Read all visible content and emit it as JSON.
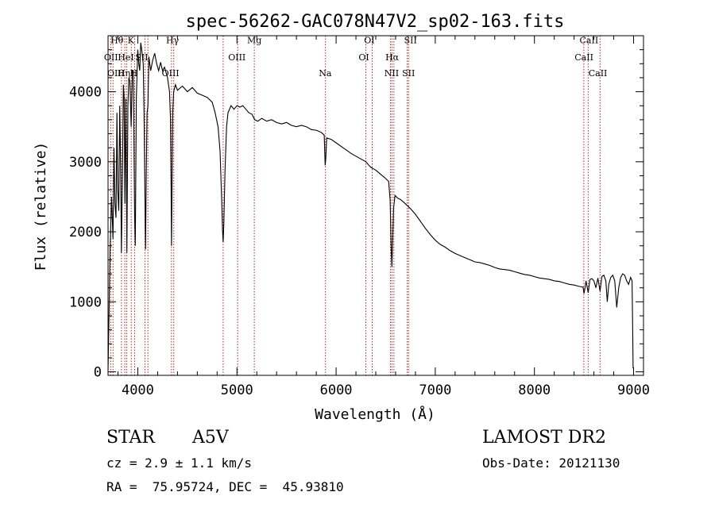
{
  "chart_data": {
    "type": "line",
    "title": "spec-56262-GAC078N47V2_sp02-163.fits",
    "xlabel": "Wavelength (Å)",
    "ylabel": "Flux (relative)",
    "xlim": [
      3700,
      9100
    ],
    "ylim": [
      -50,
      4800
    ],
    "xticks": [
      4000,
      5000,
      6000,
      7000,
      8000,
      9000
    ],
    "xtick_labels": [
      "4000",
      "5000",
      "6000",
      "7000",
      "8000",
      "9000"
    ],
    "yticks": [
      0,
      1000,
      2000,
      3000,
      4000
    ],
    "ytick_labels": [
      "0",
      "1000",
      "2000",
      "3000",
      "4000"
    ],
    "grid": false,
    "series": [
      {
        "name": "",
        "points": [
          [
            3700,
            30
          ],
          [
            3705,
            400
          ],
          [
            3720,
            1700
          ],
          [
            3735,
            2500
          ],
          [
            3750,
            1900
          ],
          [
            3760,
            3200
          ],
          [
            3770,
            2400
          ],
          [
            3780,
            2200
          ],
          [
            3790,
            3700
          ],
          [
            3798,
            2600
          ],
          [
            3808,
            2300
          ],
          [
            3818,
            3800
          ],
          [
            3828,
            2800
          ],
          [
            3835,
            1700
          ],
          [
            3845,
            2800
          ],
          [
            3855,
            4100
          ],
          [
            3863,
            3900
          ],
          [
            3870,
            2400
          ],
          [
            3880,
            3900
          ],
          [
            3890,
            1700
          ],
          [
            3900,
            3800
          ],
          [
            3910,
            4200
          ],
          [
            3920,
            4150
          ],
          [
            3933,
            3500
          ],
          [
            3945,
            4300
          ],
          [
            3955,
            4300
          ],
          [
            3968,
            2200
          ],
          [
            3975,
            1800
          ],
          [
            3985,
            3900
          ],
          [
            4000,
            4600
          ],
          [
            4010,
            4400
          ],
          [
            4020,
            4300
          ],
          [
            4030,
            4700
          ],
          [
            4040,
            4600
          ],
          [
            4055,
            4400
          ],
          [
            4063,
            3700
          ],
          [
            4070,
            2800
          ],
          [
            4078,
            1750
          ],
          [
            4085,
            2800
          ],
          [
            4093,
            3700
          ],
          [
            4102,
            3800
          ],
          [
            4112,
            4500
          ],
          [
            4130,
            4300
          ],
          [
            4150,
            4450
          ],
          [
            4170,
            4550
          ],
          [
            4190,
            4400
          ],
          [
            4210,
            4300
          ],
          [
            4230,
            4420
          ],
          [
            4250,
            4300
          ],
          [
            4270,
            4350
          ],
          [
            4290,
            4250
          ],
          [
            4300,
            4200
          ],
          [
            4310,
            4100
          ],
          [
            4320,
            4000
          ],
          [
            4330,
            3600
          ],
          [
            4336,
            2600
          ],
          [
            4340,
            1800
          ],
          [
            4346,
            2700
          ],
          [
            4352,
            3700
          ],
          [
            4362,
            4000
          ],
          [
            4380,
            4100
          ],
          [
            4400,
            4020
          ],
          [
            4450,
            4080
          ],
          [
            4500,
            4000
          ],
          [
            4550,
            4060
          ],
          [
            4600,
            3980
          ],
          [
            4650,
            3950
          ],
          [
            4700,
            3920
          ],
          [
            4750,
            3850
          ],
          [
            4780,
            3700
          ],
          [
            4810,
            3500
          ],
          [
            4830,
            3150
          ],
          [
            4845,
            2500
          ],
          [
            4855,
            2000
          ],
          [
            4861,
            1850
          ],
          [
            4867,
            2100
          ],
          [
            4880,
            2900
          ],
          [
            4895,
            3500
          ],
          [
            4910,
            3700
          ],
          [
            4940,
            3800
          ],
          [
            4970,
            3750
          ],
          [
            5000,
            3800
          ],
          [
            5030,
            3780
          ],
          [
            5060,
            3800
          ],
          [
            5090,
            3750
          ],
          [
            5120,
            3700
          ],
          [
            5150,
            3680
          ],
          [
            5180,
            3600
          ],
          [
            5210,
            3580
          ],
          [
            5250,
            3620
          ],
          [
            5300,
            3580
          ],
          [
            5350,
            3600
          ],
          [
            5400,
            3560
          ],
          [
            5450,
            3540
          ],
          [
            5500,
            3560
          ],
          [
            5550,
            3520
          ],
          [
            5600,
            3500
          ],
          [
            5650,
            3520
          ],
          [
            5700,
            3500
          ],
          [
            5750,
            3460
          ],
          [
            5800,
            3450
          ],
          [
            5850,
            3420
          ],
          [
            5880,
            3380
          ],
          [
            5890,
            2950
          ],
          [
            5896,
            3050
          ],
          [
            5905,
            3340
          ],
          [
            5950,
            3320
          ],
          [
            6000,
            3270
          ],
          [
            6050,
            3220
          ],
          [
            6100,
            3170
          ],
          [
            6150,
            3120
          ],
          [
            6200,
            3080
          ],
          [
            6250,
            3040
          ],
          [
            6300,
            3000
          ],
          [
            6330,
            2950
          ],
          [
            6350,
            2920
          ],
          [
            6400,
            2880
          ],
          [
            6450,
            2820
          ],
          [
            6500,
            2760
          ],
          [
            6530,
            2720
          ],
          [
            6545,
            2450
          ],
          [
            6555,
            1800
          ],
          [
            6563,
            1500
          ],
          [
            6570,
            1850
          ],
          [
            6580,
            2350
          ],
          [
            6595,
            2520
          ],
          [
            6620,
            2480
          ],
          [
            6650,
            2460
          ],
          [
            6700,
            2400
          ],
          [
            6750,
            2330
          ],
          [
            6800,
            2250
          ],
          [
            6850,
            2150
          ],
          [
            6900,
            2050
          ],
          [
            6950,
            1960
          ],
          [
            7000,
            1880
          ],
          [
            7050,
            1820
          ],
          [
            7100,
            1780
          ],
          [
            7150,
            1730
          ],
          [
            7200,
            1690
          ],
          [
            7250,
            1660
          ],
          [
            7300,
            1630
          ],
          [
            7350,
            1600
          ],
          [
            7400,
            1570
          ],
          [
            7450,
            1560
          ],
          [
            7500,
            1540
          ],
          [
            7550,
            1520
          ],
          [
            7600,
            1490
          ],
          [
            7650,
            1470
          ],
          [
            7700,
            1460
          ],
          [
            7750,
            1450
          ],
          [
            7800,
            1430
          ],
          [
            7850,
            1410
          ],
          [
            7900,
            1390
          ],
          [
            7950,
            1380
          ],
          [
            8000,
            1360
          ],
          [
            8050,
            1340
          ],
          [
            8100,
            1330
          ],
          [
            8150,
            1320
          ],
          [
            8200,
            1300
          ],
          [
            8250,
            1290
          ],
          [
            8300,
            1270
          ],
          [
            8350,
            1250
          ],
          [
            8400,
            1240
          ],
          [
            8450,
            1220
          ],
          [
            8490,
            1210
          ],
          [
            8500,
            1120
          ],
          [
            8510,
            1200
          ],
          [
            8520,
            1300
          ],
          [
            8542,
            1130
          ],
          [
            8560,
            1320
          ],
          [
            8580,
            1330
          ],
          [
            8600,
            1300
          ],
          [
            8620,
            1200
          ],
          [
            8640,
            1340
          ],
          [
            8662,
            1150
          ],
          [
            8680,
            1360
          ],
          [
            8700,
            1380
          ],
          [
            8720,
            1300
          ],
          [
            8735,
            1000
          ],
          [
            8750,
            1250
          ],
          [
            8770,
            1350
          ],
          [
            8790,
            1380
          ],
          [
            8810,
            1300
          ],
          [
            8830,
            920
          ],
          [
            8850,
            1200
          ],
          [
            8870,
            1350
          ],
          [
            8890,
            1400
          ],
          [
            8910,
            1380
          ],
          [
            8930,
            1300
          ],
          [
            8950,
            1250
          ],
          [
            8970,
            1350
          ],
          [
            8985,
            1300
          ],
          [
            8992,
            500
          ],
          [
            8995,
            50
          ]
        ]
      }
    ],
    "lines": [
      {
        "x": 3727,
        "labels": [
          "OII",
          "OIII"
        ]
      },
      {
        "x": 3750,
        "labels": [
          "Hθ"
        ]
      },
      {
        "x": 3835,
        "labels": [
          "Hη"
        ]
      },
      {
        "x": 3869,
        "labels": [
          "HeI"
        ]
      },
      {
        "x": 3889,
        "labels": [
          "Hζ"
        ]
      },
      {
        "x": 3934,
        "labels": [
          "K"
        ]
      },
      {
        "x": 3968,
        "labels": [
          "H"
        ]
      },
      {
        "x": 4072,
        "labels": [
          "SII"
        ]
      },
      {
        "x": 4102,
        "labels": [
          "Hδ"
        ]
      },
      {
        "x": 4340,
        "labels": [
          "Hγ"
        ]
      },
      {
        "x": 4363,
        "labels": [
          "OIII"
        ]
      },
      {
        "x": 4861,
        "labels": [
          "Hβ"
        ]
      },
      {
        "x": 5007,
        "labels": [
          "OIII"
        ]
      },
      {
        "x": 5175,
        "labels": [
          "Mg"
        ]
      },
      {
        "x": 5893,
        "labels": [
          "Na"
        ]
      },
      {
        "x": 6300,
        "labels": [
          "OI"
        ]
      },
      {
        "x": 6364,
        "labels": [
          "OI"
        ]
      },
      {
        "x": 6548,
        "labels": [
          "NII"
        ]
      },
      {
        "x": 6563,
        "labels": [
          "Hα"
        ]
      },
      {
        "x": 6583,
        "labels": [
          "NII"
        ]
      },
      {
        "x": 6717,
        "labels": [
          "SII"
        ]
      },
      {
        "x": 6731,
        "labels": [
          "SII"
        ]
      },
      {
        "x": 8498,
        "labels": [
          "CaII"
        ]
      },
      {
        "x": 8542,
        "labels": [
          "CaII"
        ]
      },
      {
        "x": 8662,
        "labels": [
          "CaII"
        ]
      }
    ],
    "line_labels": [
      {
        "text": "Hθ",
        "x": 3790,
        "y": 4690
      },
      {
        "text": "K",
        "x": 3930,
        "y": 4690
      },
      {
        "text": "Hγ",
        "x": 4350,
        "y": 4690
      },
      {
        "text": "Mg",
        "x": 5175,
        "y": 4690
      },
      {
        "text": "OI",
        "x": 6335,
        "y": 4690
      },
      {
        "text": "SII",
        "x": 6750,
        "y": 4690
      },
      {
        "text": "CaII",
        "x": 8550,
        "y": 4690
      },
      {
        "text": "OII",
        "x": 3730,
        "y": 4450
      },
      {
        "text": "HeI",
        "x": 3880,
        "y": 4450
      },
      {
        "text": "SII",
        "x": 4040,
        "y": 4450
      },
      {
        "text": "OIII",
        "x": 5000,
        "y": 4450
      },
      {
        "text": "OI",
        "x": 6280,
        "y": 4450
      },
      {
        "text": "Hα",
        "x": 6565,
        "y": 4450
      },
      {
        "text": "CaII",
        "x": 8500,
        "y": 4450
      },
      {
        "text": "OIII",
        "x": 3780,
        "y": 4220
      },
      {
        "text": "Hη",
        "x": 3860,
        "y": 4220
      },
      {
        "text": "H",
        "x": 3960,
        "y": 4220
      },
      {
        "text": "OIII",
        "x": 4330,
        "y": 4220
      },
      {
        "text": "Na",
        "x": 5890,
        "y": 4220
      },
      {
        "text": "NII",
        "x": 6560,
        "y": 4220
      },
      {
        "text": "SII",
        "x": 6730,
        "y": 4220
      },
      {
        "text": "CaII",
        "x": 8640,
        "y": 4220
      }
    ]
  },
  "info": {
    "object_class": "STAR",
    "subclass": "A5V",
    "survey": "LAMOST DR2",
    "redshift": "cz = 2.9 ± 1.1 km/s",
    "obs_date": "Obs-Date: 20121130",
    "coords": "RA =  75.95724, DEC =  45.93810"
  }
}
